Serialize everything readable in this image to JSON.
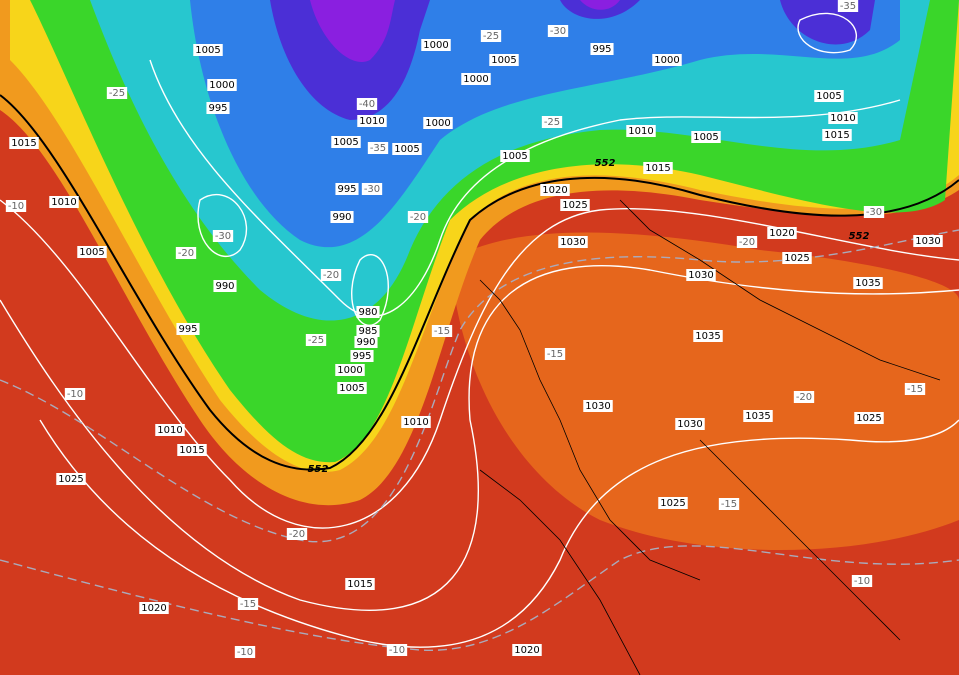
{
  "map": {
    "pressure_labels": [
      "1005",
      "1000",
      "995",
      "1010",
      "1005",
      "990",
      "995",
      "1000",
      "1005",
      "1000",
      "1000",
      "1010",
      "1005",
      "1005",
      "995",
      "990",
      "980",
      "985",
      "990",
      "995",
      "1000",
      "1005",
      "1010",
      "1015",
      "1010",
      "1025",
      "1015",
      "1020",
      "1020",
      "995",
      "1000",
      "1010",
      "1005",
      "1005",
      "1015",
      "1020",
      "1025",
      "1030",
      "1030",
      "1020",
      "1025",
      "1035",
      "1030",
      "1035",
      "1030",
      "1030",
      "1035",
      "1025",
      "1025",
      "1015",
      "1005",
      "1010",
      "1015"
    ],
    "temperature_labels": [
      "-25",
      "-20",
      "-30",
      "-25",
      "-20",
      "-20",
      "-15",
      "-25",
      "-30",
      "-25",
      "-30",
      "-40",
      "-35",
      "-35",
      "-30",
      "-20",
      "-15",
      "-20",
      "-15",
      "-15",
      "-10",
      "-10",
      "-20",
      "-15",
      "-10",
      "-10",
      "-10"
    ],
    "thickness_labels": [
      "552",
      "552",
      "552"
    ]
  }
}
